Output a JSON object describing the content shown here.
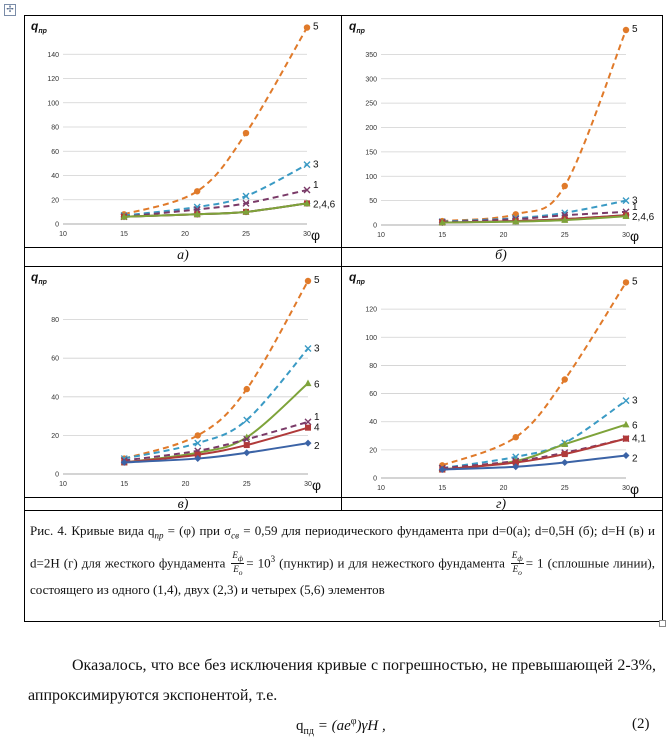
{
  "anchor_icon": "move-handle-icon",
  "series_colors": {
    "1": "#7a3a68",
    "2": "#3b63a6",
    "3": "#3a9ac4",
    "4": "#b03a3a",
    "5": "#e07a2a",
    "6": "#7ea33a"
  },
  "panels": [
    {
      "letter": "а)"
    },
    {
      "letter": "б)"
    },
    {
      "letter": "в)"
    },
    {
      "letter": "г)"
    }
  ],
  "chart_data": [
    {
      "type": "line",
      "title": "а)",
      "ylabel": "q_пр",
      "xlabel": "φ",
      "xlim": [
        10,
        30
      ],
      "ylim": [
        0,
        160
      ],
      "yticks": [
        0,
        20,
        40,
        60,
        80,
        100,
        120,
        140
      ],
      "xticks": [
        10,
        15,
        20,
        25,
        30
      ],
      "x": [
        15,
        21,
        25,
        30
      ],
      "series": [
        {
          "name": "5",
          "label": "5",
          "style": "dashed",
          "marker": "circle",
          "color": "#e07a2a",
          "values": [
            8,
            27,
            75,
            162
          ]
        },
        {
          "name": "3",
          "label": "3",
          "style": "dashed",
          "marker": "x",
          "color": "#3a9ac4",
          "values": [
            7,
            14,
            23,
            49
          ]
        },
        {
          "name": "1",
          "label": "1",
          "style": "dashed",
          "marker": "x",
          "color": "#7a3a68",
          "values": [
            6,
            12,
            17,
            28
          ]
        },
        {
          "name": "2",
          "label": "",
          "style": "solid",
          "marker": "diamond",
          "color": "#3b63a6",
          "values": [
            6,
            8,
            10,
            17
          ]
        },
        {
          "name": "4",
          "label": "",
          "style": "solid",
          "marker": "square",
          "color": "#b03a3a",
          "values": [
            6,
            8,
            10,
            17
          ]
        },
        {
          "name": "6",
          "label": "2,4,6",
          "style": "solid",
          "marker": "triangle",
          "color": "#7ea33a",
          "values": [
            6,
            8,
            10,
            17
          ]
        }
      ]
    },
    {
      "type": "line",
      "title": "б)",
      "ylabel": "q_пр",
      "xlabel": "φ",
      "xlim": [
        10,
        30
      ],
      "ylim": [
        0,
        400
      ],
      "yticks": [
        0,
        50,
        100,
        150,
        200,
        250,
        300,
        350
      ],
      "xticks": [
        10,
        15,
        20,
        25,
        30
      ],
      "x": [
        15,
        21,
        25,
        30
      ],
      "series": [
        {
          "name": "5",
          "label": "5",
          "style": "dashed",
          "marker": "circle",
          "color": "#e07a2a",
          "values": [
            8,
            22,
            80,
            400
          ]
        },
        {
          "name": "3",
          "label": "3",
          "style": "dashed",
          "marker": "x",
          "color": "#3a9ac4",
          "values": [
            7,
            14,
            25,
            50
          ]
        },
        {
          "name": "1",
          "label": "1",
          "style": "dashed",
          "marker": "x",
          "color": "#7a3a68",
          "values": [
            6,
            12,
            20,
            27
          ]
        },
        {
          "name": "2",
          "label": "",
          "style": "solid",
          "marker": "diamond",
          "color": "#3b63a6",
          "values": [
            5,
            8,
            12,
            20
          ]
        },
        {
          "name": "4",
          "label": "",
          "style": "solid",
          "marker": "square",
          "color": "#b03a3a",
          "values": [
            5,
            8,
            12,
            20
          ]
        },
        {
          "name": "6",
          "label": "2,4,6",
          "style": "solid",
          "marker": "triangle",
          "color": "#7ea33a",
          "values": [
            5,
            7,
            10,
            18
          ]
        }
      ]
    },
    {
      "type": "line",
      "title": "в)",
      "ylabel": "q_пр",
      "xlabel": "φ",
      "xlim": [
        10,
        30
      ],
      "ylim": [
        0,
        100
      ],
      "yticks": [
        0,
        20,
        40,
        60,
        80
      ],
      "xticks": [
        10,
        15,
        20,
        25,
        30
      ],
      "x": [
        15,
        21,
        25,
        30
      ],
      "series": [
        {
          "name": "5",
          "label": "5",
          "style": "dashed",
          "marker": "circle",
          "color": "#e07a2a",
          "values": [
            8,
            20,
            44,
            100
          ]
        },
        {
          "name": "3",
          "label": "3",
          "style": "dashed",
          "marker": "x",
          "color": "#3a9ac4",
          "values": [
            8,
            16,
            28,
            65
          ]
        },
        {
          "name": "6",
          "label": "6",
          "style": "solid",
          "marker": "triangle",
          "color": "#7ea33a",
          "values": [
            6,
            11,
            19,
            47
          ]
        },
        {
          "name": "1",
          "label": "1",
          "style": "dashed",
          "marker": "x",
          "color": "#7a3a68",
          "values": [
            7,
            12,
            18,
            27
          ]
        },
        {
          "name": "4",
          "label": "4",
          "style": "solid",
          "marker": "square",
          "color": "#b03a3a",
          "values": [
            6,
            10,
            15,
            24
          ]
        },
        {
          "name": "2",
          "label": "2",
          "style": "solid",
          "marker": "diamond",
          "color": "#3b63a6",
          "values": [
            6,
            8,
            11,
            16
          ]
        }
      ]
    },
    {
      "type": "line",
      "title": "г)",
      "ylabel": "q_пр",
      "xlabel": "φ",
      "xlim": [
        10,
        30
      ],
      "ylim": [
        0,
        140
      ],
      "yticks": [
        0,
        20,
        40,
        60,
        80,
        100,
        120
      ],
      "xticks": [
        10,
        15,
        20,
        25,
        30
      ],
      "x": [
        15,
        21,
        25,
        30
      ],
      "series": [
        {
          "name": "5",
          "label": "5",
          "style": "dashed",
          "marker": "circle",
          "color": "#e07a2a",
          "values": [
            9,
            29,
            70,
            139
          ]
        },
        {
          "name": "3",
          "label": "3",
          "style": "dashed",
          "marker": "x",
          "color": "#3a9ac4",
          "values": [
            7,
            15,
            25,
            55
          ]
        },
        {
          "name": "6",
          "label": "6",
          "style": "solid",
          "marker": "triangle",
          "color": "#7ea33a",
          "values": [
            6,
            12,
            24,
            38
          ]
        },
        {
          "name": "1",
          "label": "",
          "style": "dashed",
          "marker": "x",
          "color": "#7a3a68",
          "values": [
            7,
            12,
            18,
            28
          ]
        },
        {
          "name": "4",
          "label": "4,1",
          "style": "solid",
          "marker": "square",
          "color": "#b03a3a",
          "values": [
            6,
            11,
            17,
            28
          ]
        },
        {
          "name": "2",
          "label": "2",
          "style": "solid",
          "marker": "diamond",
          "color": "#3b63a6",
          "values": [
            6,
            8,
            11,
            16
          ]
        }
      ]
    }
  ],
  "caption": {
    "part1": "Рис. 4. Кривые вида q",
    "sub1": "пр",
    "part2": " = (φ) при σ",
    "sub2": "св",
    "part3": " = 0,59 для периодического фундамента при d=0(а); d=0,5H (б);  d=H (в) и d=2H (г) для жесткого фундамента",
    "frac1_num": "E",
    "frac1_num_sub": "ф",
    "frac1_den": "E",
    "frac1_den_sub": "о",
    "part4": "= 10",
    "sup1": "3",
    "part5": " (пунктир) и для нежесткого фундамента",
    "frac2_num": "E",
    "frac2_num_sub": "ф",
    "frac2_den": "E",
    "frac2_den_sub": "о",
    "part6": "= 1 (сплошные линии), состоящего из одного (1,4), двух (2,3) и четырех (5,6) элементов"
  },
  "body": {
    "paragraph": "Оказалось, что все без исключения кривые с погрешностью, не превышающей 2-3%, аппроксимируются экспонентой, т.е.",
    "formula_lhs": "q",
    "formula_lhs_sub": "пд",
    "formula_rhs_a": " = (ae",
    "formula_rhs_sup": "φ",
    "formula_rhs_b": ")γH ,",
    "eq_number": "(2)"
  }
}
